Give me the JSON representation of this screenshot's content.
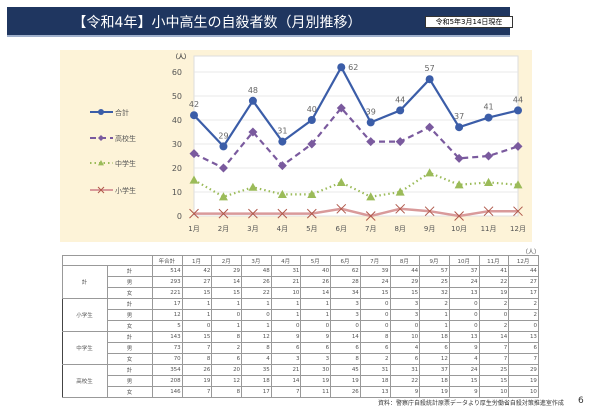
{
  "header": {
    "title": "【令和4年】小中高生の自殺者数（月別推移）",
    "as_of": "令和5年3月14日現在"
  },
  "chart_data": {
    "type": "line",
    "ylabel": "（人）",
    "ylim": [
      0,
      60
    ],
    "yticks": [
      0,
      10,
      20,
      30,
      40,
      50,
      60
    ],
    "categories": [
      "1月",
      "2月",
      "3月",
      "4月",
      "5月",
      "6月",
      "7月",
      "8月",
      "9月",
      "10月",
      "11月",
      "12月"
    ],
    "grid": true,
    "legend_placement": "left",
    "series": [
      {
        "name": "合計",
        "values": [
          42,
          29,
          48,
          31,
          40,
          62,
          39,
          44,
          57,
          37,
          41,
          44
        ],
        "color": "#3b5da8",
        "style": "solid",
        "marker": "circle",
        "data_labels": true
      },
      {
        "name": "高校生",
        "values": [
          26,
          20,
          35,
          21,
          30,
          45,
          31,
          31,
          37,
          24,
          25,
          29
        ],
        "color": "#7a5a9e",
        "style": "dashed",
        "marker": "diamond",
        "data_labels": false
      },
      {
        "name": "中学生",
        "values": [
          15,
          8,
          12,
          9,
          9,
          14,
          8,
          10,
          18,
          13,
          14,
          13
        ],
        "color": "#9bbb59",
        "style": "dotted",
        "marker": "triangle",
        "data_labels": false
      },
      {
        "name": "小学生",
        "values": [
          1,
          1,
          1,
          1,
          1,
          3,
          0,
          3,
          2,
          0,
          2,
          2
        ],
        "color": "#d99a9a",
        "style": "solid",
        "marker": "x",
        "data_labels": false
      }
    ]
  },
  "table": {
    "unit": "（人）",
    "headers": [
      "年合計",
      "1月",
      "2月",
      "3月",
      "4月",
      "5月",
      "6月",
      "7月",
      "8月",
      "9月",
      "10月",
      "11月",
      "12月"
    ],
    "groups": [
      {
        "label": "計",
        "rows": [
          {
            "label": "計",
            "values": [
              514,
              42,
              29,
              48,
              31,
              40,
              62,
              39,
              44,
              57,
              37,
              41,
              44
            ]
          },
          {
            "label": "男",
            "values": [
              293,
              27,
              14,
              26,
              21,
              26,
              28,
              24,
              29,
              25,
              24,
              22,
              27
            ]
          },
          {
            "label": "女",
            "values": [
              221,
              15,
              15,
              22,
              10,
              14,
              34,
              15,
              15,
              32,
              13,
              19,
              17
            ]
          }
        ]
      },
      {
        "label": "小学生",
        "rows": [
          {
            "label": "計",
            "values": [
              17,
              1,
              1,
              1,
              1,
              1,
              3,
              0,
              3,
              2,
              0,
              2,
              2
            ]
          },
          {
            "label": "男",
            "values": [
              12,
              1,
              0,
              0,
              1,
              1,
              3,
              0,
              3,
              1,
              0,
              0,
              2
            ]
          },
          {
            "label": "女",
            "values": [
              5,
              0,
              1,
              1,
              0,
              0,
              0,
              0,
              0,
              1,
              0,
              2,
              0
            ]
          }
        ]
      },
      {
        "label": "中学生",
        "rows": [
          {
            "label": "計",
            "values": [
              143,
              15,
              8,
              12,
              9,
              9,
              14,
              8,
              10,
              18,
              13,
              14,
              13
            ]
          },
          {
            "label": "男",
            "values": [
              73,
              7,
              2,
              8,
              6,
              6,
              6,
              6,
              4,
              6,
              9,
              7,
              6
            ]
          },
          {
            "label": "女",
            "values": [
              70,
              8,
              6,
              4,
              3,
              3,
              8,
              2,
              6,
              12,
              4,
              7,
              7
            ]
          }
        ]
      },
      {
        "label": "高校生",
        "rows": [
          {
            "label": "計",
            "values": [
              354,
              26,
              20,
              35,
              21,
              30,
              45,
              31,
              31,
              37,
              24,
              25,
              29
            ]
          },
          {
            "label": "男",
            "values": [
              208,
              19,
              12,
              18,
              14,
              19,
              19,
              18,
              22,
              18,
              15,
              15,
              19
            ]
          },
          {
            "label": "女",
            "values": [
              146,
              7,
              8,
              17,
              7,
              11,
              26,
              13,
              9,
              19,
              9,
              10,
              10
            ]
          }
        ]
      }
    ]
  },
  "footer": {
    "source": "資料：警察庁自殺統計原票データより厚生労働省自殺対策推進室作成",
    "page": "6"
  }
}
